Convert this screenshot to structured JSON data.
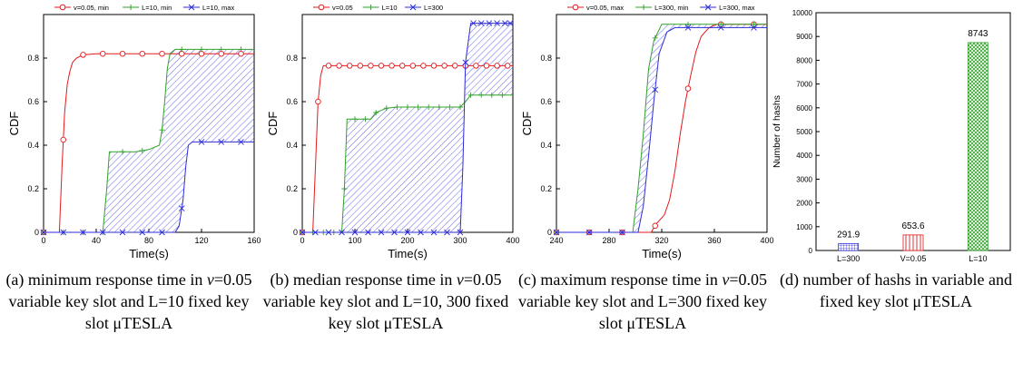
{
  "colors": {
    "red": "#e31a1c",
    "green": "#33a02c",
    "blue": "#2b2bd9",
    "axis": "#000000",
    "grid": "#dddddd",
    "hatch": "#5555ee"
  },
  "chart_data": [
    {
      "type": "line",
      "ylabel": "CDF",
      "xlabel": "Time(s)",
      "xlim": [
        0,
        160
      ],
      "ylim": [
        0,
        1
      ],
      "xticks": [
        0,
        40,
        80,
        120,
        160
      ],
      "yticks": [
        0,
        0.2,
        0.4,
        0.6,
        0.8
      ],
      "legend_position": "top",
      "series": [
        {
          "name": "v=0.05, min",
          "color": "#e31a1c",
          "marker": "circle",
          "points": [
            [
              0,
              0
            ],
            [
              12,
              0
            ],
            [
              14,
              0.3
            ],
            [
              16,
              0.55
            ],
            [
              18,
              0.68
            ],
            [
              20,
              0.74
            ],
            [
              22,
              0.78
            ],
            [
              25,
              0.8
            ],
            [
              30,
              0.815
            ],
            [
              40,
              0.82
            ],
            [
              160,
              0.82
            ]
          ],
          "marker_x": [
            0,
            15,
            30,
            45,
            60,
            75,
            90,
            105,
            120,
            135,
            150
          ]
        },
        {
          "name": "L=10, min",
          "color": "#33a02c",
          "marker": "plus",
          "points": [
            [
              0,
              0
            ],
            [
              45,
              0
            ],
            [
              48,
              0.2
            ],
            [
              50,
              0.37
            ],
            [
              70,
              0.37
            ],
            [
              80,
              0.38
            ],
            [
              88,
              0.4
            ],
            [
              90,
              0.47
            ],
            [
              92,
              0.6
            ],
            [
              94,
              0.75
            ],
            [
              96,
              0.82
            ],
            [
              100,
              0.84
            ],
            [
              160,
              0.84
            ]
          ],
          "marker_x": [
            0,
            15,
            30,
            45,
            60,
            75,
            90,
            105,
            120,
            135,
            150
          ]
        },
        {
          "name": "L=10, max",
          "color": "#2b2bd9",
          "marker": "x",
          "points": [
            [
              0,
              0
            ],
            [
              100,
              0
            ],
            [
              103,
              0.03
            ],
            [
              106,
              0.15
            ],
            [
              108,
              0.3
            ],
            [
              110,
              0.4
            ],
            [
              113,
              0.415
            ],
            [
              160,
              0.415
            ]
          ],
          "marker_x": [
            0,
            15,
            30,
            45,
            60,
            75,
            90,
            105,
            120,
            135,
            150
          ]
        }
      ],
      "band": [
        "L=10, min",
        "L=10, max"
      ]
    },
    {
      "type": "line",
      "ylabel": "CDF",
      "xlabel": "Time(s)",
      "xlim": [
        0,
        400
      ],
      "ylim": [
        0,
        1
      ],
      "xticks": [
        0,
        100,
        200,
        300,
        400
      ],
      "yticks": [
        0,
        0.2,
        0.4,
        0.6,
        0.8
      ],
      "legend_position": "top",
      "series": [
        {
          "name": "v=0.05",
          "color": "#e31a1c",
          "marker": "circle",
          "points": [
            [
              0,
              0
            ],
            [
              20,
              0
            ],
            [
              25,
              0.3
            ],
            [
              30,
              0.6
            ],
            [
              35,
              0.72
            ],
            [
              40,
              0.765
            ],
            [
              400,
              0.765
            ]
          ],
          "marker_x": [
            0,
            30,
            50,
            70,
            90,
            110,
            130,
            150,
            170,
            190,
            210,
            230,
            250,
            270,
            290,
            310,
            330,
            350,
            370,
            390
          ]
        },
        {
          "name": "L=10",
          "color": "#33a02c",
          "marker": "plus",
          "points": [
            [
              0,
              0
            ],
            [
              75,
              0
            ],
            [
              80,
              0.2
            ],
            [
              85,
              0.52
            ],
            [
              130,
              0.52
            ],
            [
              140,
              0.55
            ],
            [
              160,
              0.57
            ],
            [
              180,
              0.575
            ],
            [
              300,
              0.575
            ],
            [
              310,
              0.6
            ],
            [
              320,
              0.63
            ],
            [
              400,
              0.63
            ]
          ],
          "marker_x": [
            0,
            20,
            40,
            60,
            80,
            100,
            120,
            140,
            160,
            180,
            200,
            220,
            240,
            260,
            280,
            300,
            320,
            340,
            360,
            380
          ]
        },
        {
          "name": "L=300",
          "color": "#2b2bd9",
          "marker": "x",
          "points": [
            [
              0,
              0
            ],
            [
              300,
              0
            ],
            [
              305,
              0.3
            ],
            [
              310,
              0.78
            ],
            [
              320,
              0.96
            ],
            [
              400,
              0.96
            ]
          ],
          "marker_x": [
            0,
            25,
            50,
            75,
            100,
            125,
            150,
            175,
            200,
            225,
            250,
            275,
            300,
            310,
            325,
            340,
            355,
            370,
            385,
            395
          ]
        }
      ],
      "band": [
        "L=10",
        "L=300"
      ]
    },
    {
      "type": "line",
      "ylabel": "CDF",
      "xlabel": "Time(s)",
      "xlim": [
        240,
        400
      ],
      "ylim": [
        0,
        1
      ],
      "xticks": [
        240,
        280,
        320,
        360,
        400
      ],
      "yticks": [
        0,
        0.2,
        0.4,
        0.6,
        0.8
      ],
      "legend_position": "top",
      "series": [
        {
          "name": "v=0.05, max",
          "color": "#e31a1c",
          "marker": "circle",
          "points": [
            [
              240,
              0
            ],
            [
              312,
              0
            ],
            [
              316,
              0.04
            ],
            [
              322,
              0.08
            ],
            [
              326,
              0.15
            ],
            [
              330,
              0.28
            ],
            [
              334,
              0.45
            ],
            [
              338,
              0.6
            ],
            [
              342,
              0.72
            ],
            [
              346,
              0.83
            ],
            [
              350,
              0.9
            ],
            [
              356,
              0.94
            ],
            [
              362,
              0.955
            ],
            [
              400,
              0.955
            ]
          ],
          "marker_x": [
            240,
            265,
            290,
            315,
            340,
            365,
            390
          ]
        },
        {
          "name": "L=300, min",
          "color": "#33a02c",
          "marker": "plus",
          "points": [
            [
              240,
              0
            ],
            [
              298,
              0
            ],
            [
              302,
              0.2
            ],
            [
              306,
              0.45
            ],
            [
              310,
              0.75
            ],
            [
              314,
              0.88
            ],
            [
              320,
              0.955
            ],
            [
              400,
              0.955
            ]
          ],
          "marker_x": [
            240,
            265,
            290,
            315,
            340,
            365,
            390
          ]
        },
        {
          "name": "L=300, max",
          "color": "#2b2bd9",
          "marker": "x",
          "points": [
            [
              240,
              0
            ],
            [
              302,
              0
            ],
            [
              306,
              0.12
            ],
            [
              310,
              0.35
            ],
            [
              314,
              0.6
            ],
            [
              318,
              0.82
            ],
            [
              324,
              0.92
            ],
            [
              330,
              0.94
            ],
            [
              400,
              0.94
            ]
          ],
          "marker_x": [
            240,
            265,
            290,
            315,
            340,
            365,
            390
          ]
        }
      ],
      "band": [
        "L=300, min",
        "L=300, max"
      ]
    },
    {
      "type": "bar",
      "ylabel": "Number of hashs",
      "xlabel": "",
      "ylim": [
        0,
        10000
      ],
      "yticks": [
        0,
        1000,
        2000,
        3000,
        4000,
        5000,
        6000,
        7000,
        8000,
        9000,
        10000
      ],
      "categories": [
        "L=300",
        "V=0.05",
        "L=10"
      ],
      "values": [
        291.9,
        653.6,
        8743
      ],
      "value_labels": [
        "291.9",
        "653.6",
        "8743"
      ],
      "bar_colors": [
        "#2b2bd9",
        "#e31a1c",
        "#33a02c"
      ]
    }
  ],
  "captions": [
    {
      "pre": "(a) minimum response time in ",
      "var": "v",
      "rest": "=0.05 variable key slot and L=10 fixed key slot μTESLA"
    },
    {
      "pre": "(b) median response time in ",
      "var": "v",
      "rest": "=0.05 variable key slot and L=10, 300 fixed key slot μTESLA"
    },
    {
      "pre": "(c) maximum response time in ",
      "var": "v",
      "rest": "=0.05 variable key slot and L=300 fixed key slot μTESLA"
    },
    {
      "pre": "(d) number of hashs in variable and fixed key slot μTESLA",
      "var": "",
      "rest": ""
    }
  ]
}
